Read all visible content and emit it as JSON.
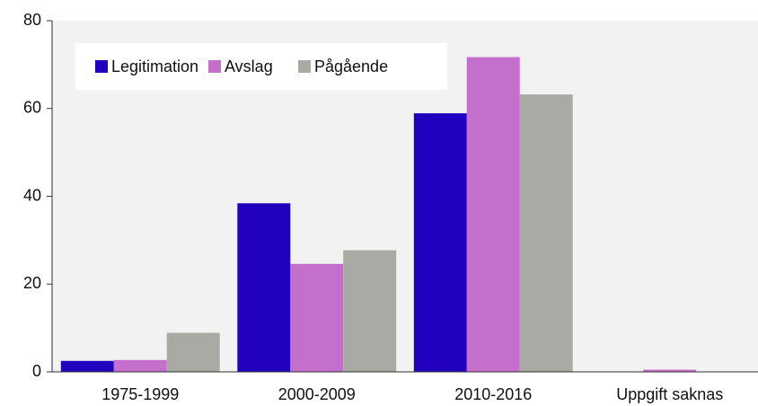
{
  "chart_data": {
    "type": "bar",
    "categories": [
      "1975-1999",
      "2000-2009",
      "2010-2016",
      "Uppgift saknas"
    ],
    "series": [
      {
        "name": "Legitimation",
        "color": "#2200c0",
        "values": [
          2.5,
          38.4,
          58.9,
          0
        ]
      },
      {
        "name": "Avslag",
        "color": "#c56fcc",
        "values": [
          2.7,
          24.6,
          71.7,
          0.5
        ]
      },
      {
        "name": "Pågående",
        "color": "#a9aaa3",
        "values": [
          8.9,
          27.7,
          63.2,
          0
        ]
      }
    ],
    "ylim": [
      0,
      80
    ],
    "yticks": [
      0,
      20,
      40,
      60,
      80
    ],
    "grid": false,
    "legend": "upper left"
  }
}
